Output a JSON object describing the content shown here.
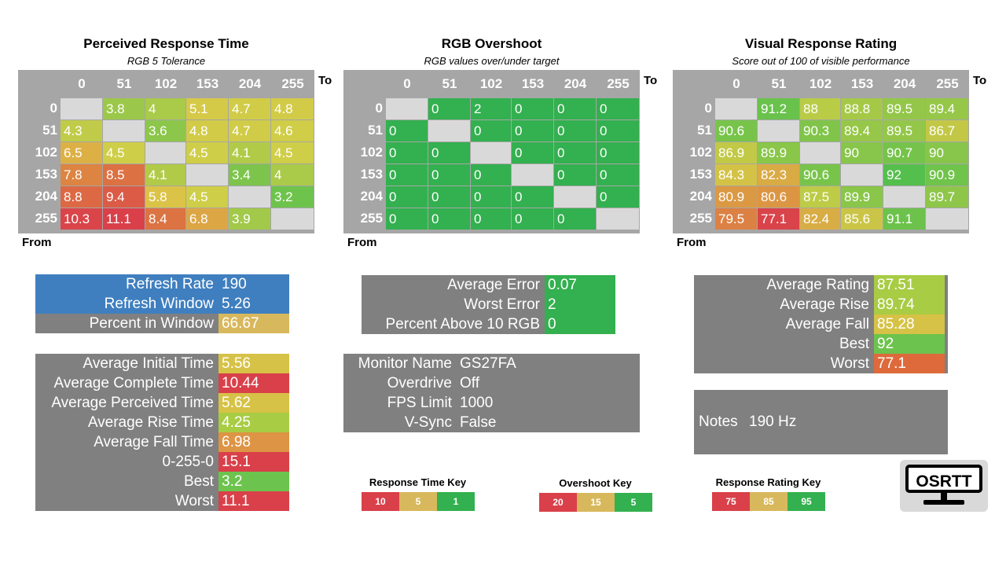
{
  "colors": {
    "panel_gray": "#808080",
    "grid_gray": "#a6a6a6",
    "diag_gray": "#d9d9d9",
    "blue": "#3f7fbf",
    "green_dark": "#33b04f",
    "green": "#6cc34d",
    "lime": "#a8cc44",
    "yellow": "#d6cc46",
    "orange": "#dd9444",
    "red_orange": "#de6a3c",
    "red": "#d9404a"
  },
  "chart_data": [
    {
      "type": "heatmap",
      "title": "Perceived Response Time",
      "subtitle": "RGB 5 Tolerance",
      "xlabel": "To",
      "ylabel": "From",
      "categories": [
        "0",
        "51",
        "102",
        "153",
        "204",
        "255"
      ],
      "metric": "time",
      "values": [
        [
          null,
          "3.8",
          "4",
          "5.1",
          "4.7",
          "4.8"
        ],
        [
          "4.3",
          null,
          "3.6",
          "4.8",
          "4.7",
          "4.6"
        ],
        [
          "6.5",
          "4.5",
          null,
          "4.5",
          "4.1",
          "4.5"
        ],
        [
          "7.8",
          "8.5",
          "4.1",
          null,
          "3.4",
          "4"
        ],
        [
          "8.8",
          "9.4",
          "5.8",
          "4.5",
          null,
          "3.2"
        ],
        [
          "10.3",
          "11.1",
          "8.4",
          "6.8",
          "3.9",
          null
        ]
      ]
    },
    {
      "type": "heatmap",
      "title": "RGB Overshoot",
      "subtitle": "RGB values over/under target",
      "xlabel": "To",
      "ylabel": "From",
      "categories": [
        "0",
        "51",
        "102",
        "153",
        "204",
        "255"
      ],
      "metric": "overshoot",
      "values": [
        [
          null,
          "0",
          "2",
          "0",
          "0",
          "0"
        ],
        [
          "0",
          null,
          "0",
          "0",
          "0",
          "0"
        ],
        [
          "0",
          "0",
          null,
          "0",
          "0",
          "0"
        ],
        [
          "0",
          "0",
          "0",
          null,
          "0",
          "0"
        ],
        [
          "0",
          "0",
          "0",
          "0",
          null,
          "0"
        ],
        [
          "0",
          "0",
          "0",
          "0",
          "0",
          null
        ]
      ]
    },
    {
      "type": "heatmap",
      "title": "Visual Response Rating",
      "subtitle": "Score out of 100 of visible performance",
      "xlabel": "To",
      "ylabel": "From",
      "categories": [
        "0",
        "51",
        "102",
        "153",
        "204",
        "255"
      ],
      "metric": "rating",
      "values": [
        [
          null,
          "91.2",
          "88",
          "88.8",
          "89.5",
          "89.4"
        ],
        [
          "90.6",
          null,
          "90.3",
          "89.4",
          "89.5",
          "86.7"
        ],
        [
          "86.9",
          "89.9",
          null,
          "90",
          "90.7",
          "90"
        ],
        [
          "84.3",
          "82.3",
          "90.6",
          null,
          "92",
          "90.9"
        ],
        [
          "80.9",
          "80.6",
          "87.5",
          "89.9",
          null,
          "89.7"
        ],
        [
          "79.5",
          "77.1",
          "82.4",
          "85.6",
          "91.1",
          null
        ]
      ]
    }
  ],
  "refresh_panel": [
    {
      "label": "Refresh Rate",
      "value": "190",
      "tone": "blue"
    },
    {
      "label": "Refresh Window",
      "value": "5.26",
      "tone": "blue"
    },
    {
      "label": "Percent in Window",
      "value": "66.67",
      "tone": "yellow-tan"
    }
  ],
  "time_panel": [
    {
      "label": "Average Initial Time",
      "value": "5.56",
      "tone": "yellow"
    },
    {
      "label": "Average Complete Time",
      "value": "10.44",
      "tone": "red"
    },
    {
      "label": "Average Perceived Time",
      "value": "5.62",
      "tone": "yellow"
    },
    {
      "label": "Average Rise Time",
      "value": "4.25",
      "tone": "lime"
    },
    {
      "label": "Average Fall Time",
      "value": "6.98",
      "tone": "orange"
    },
    {
      "label": "0-255-0",
      "value": "15.1",
      "tone": "red"
    },
    {
      "label": "Best",
      "value": "3.2",
      "tone": "green"
    },
    {
      "label": "Worst",
      "value": "11.1",
      "tone": "red"
    }
  ],
  "error_panel": [
    {
      "label": "Average Error",
      "value": "0.07",
      "tone": "green_dark"
    },
    {
      "label": "Worst Error",
      "value": "2",
      "tone": "green_dark"
    },
    {
      "label": "Percent Above 10 RGB",
      "value": "0",
      "tone": "green_dark"
    }
  ],
  "monitor_panel": [
    {
      "label": "Monitor Name",
      "value": "GS27FA"
    },
    {
      "label": "Overdrive",
      "value": "Off"
    },
    {
      "label": "FPS Limit",
      "value": "1000"
    },
    {
      "label": "V-Sync",
      "value": "False"
    }
  ],
  "rating_panel": [
    {
      "label": "Average Rating",
      "value": "87.51",
      "tone": "lime"
    },
    {
      "label": "Average Rise",
      "value": "89.74",
      "tone": "lime"
    },
    {
      "label": "Average Fall",
      "value": "85.28",
      "tone": "yellow"
    },
    {
      "label": "Best",
      "value": "92",
      "tone": "green"
    },
    {
      "label": "Worst",
      "value": "77.1",
      "tone": "red_orange"
    }
  ],
  "notes": {
    "label": "Notes",
    "value": "190 Hz"
  },
  "keys": [
    {
      "title": "Response Time Key",
      "cells": [
        {
          "label": "10",
          "tone": "red"
        },
        {
          "label": "5",
          "tone": "tan"
        },
        {
          "label": "1",
          "tone": "green_dark"
        }
      ]
    },
    {
      "title": "Overshoot Key",
      "cells": [
        {
          "label": "20",
          "tone": "red"
        },
        {
          "label": "15",
          "tone": "tan"
        },
        {
          "label": "5",
          "tone": "green_dark"
        }
      ]
    },
    {
      "title": "Response Rating Key",
      "cells": [
        {
          "label": "75",
          "tone": "red"
        },
        {
          "label": "85",
          "tone": "tan"
        },
        {
          "label": "95",
          "tone": "green_dark"
        }
      ]
    }
  ],
  "logo": {
    "text": "OSRTT"
  }
}
